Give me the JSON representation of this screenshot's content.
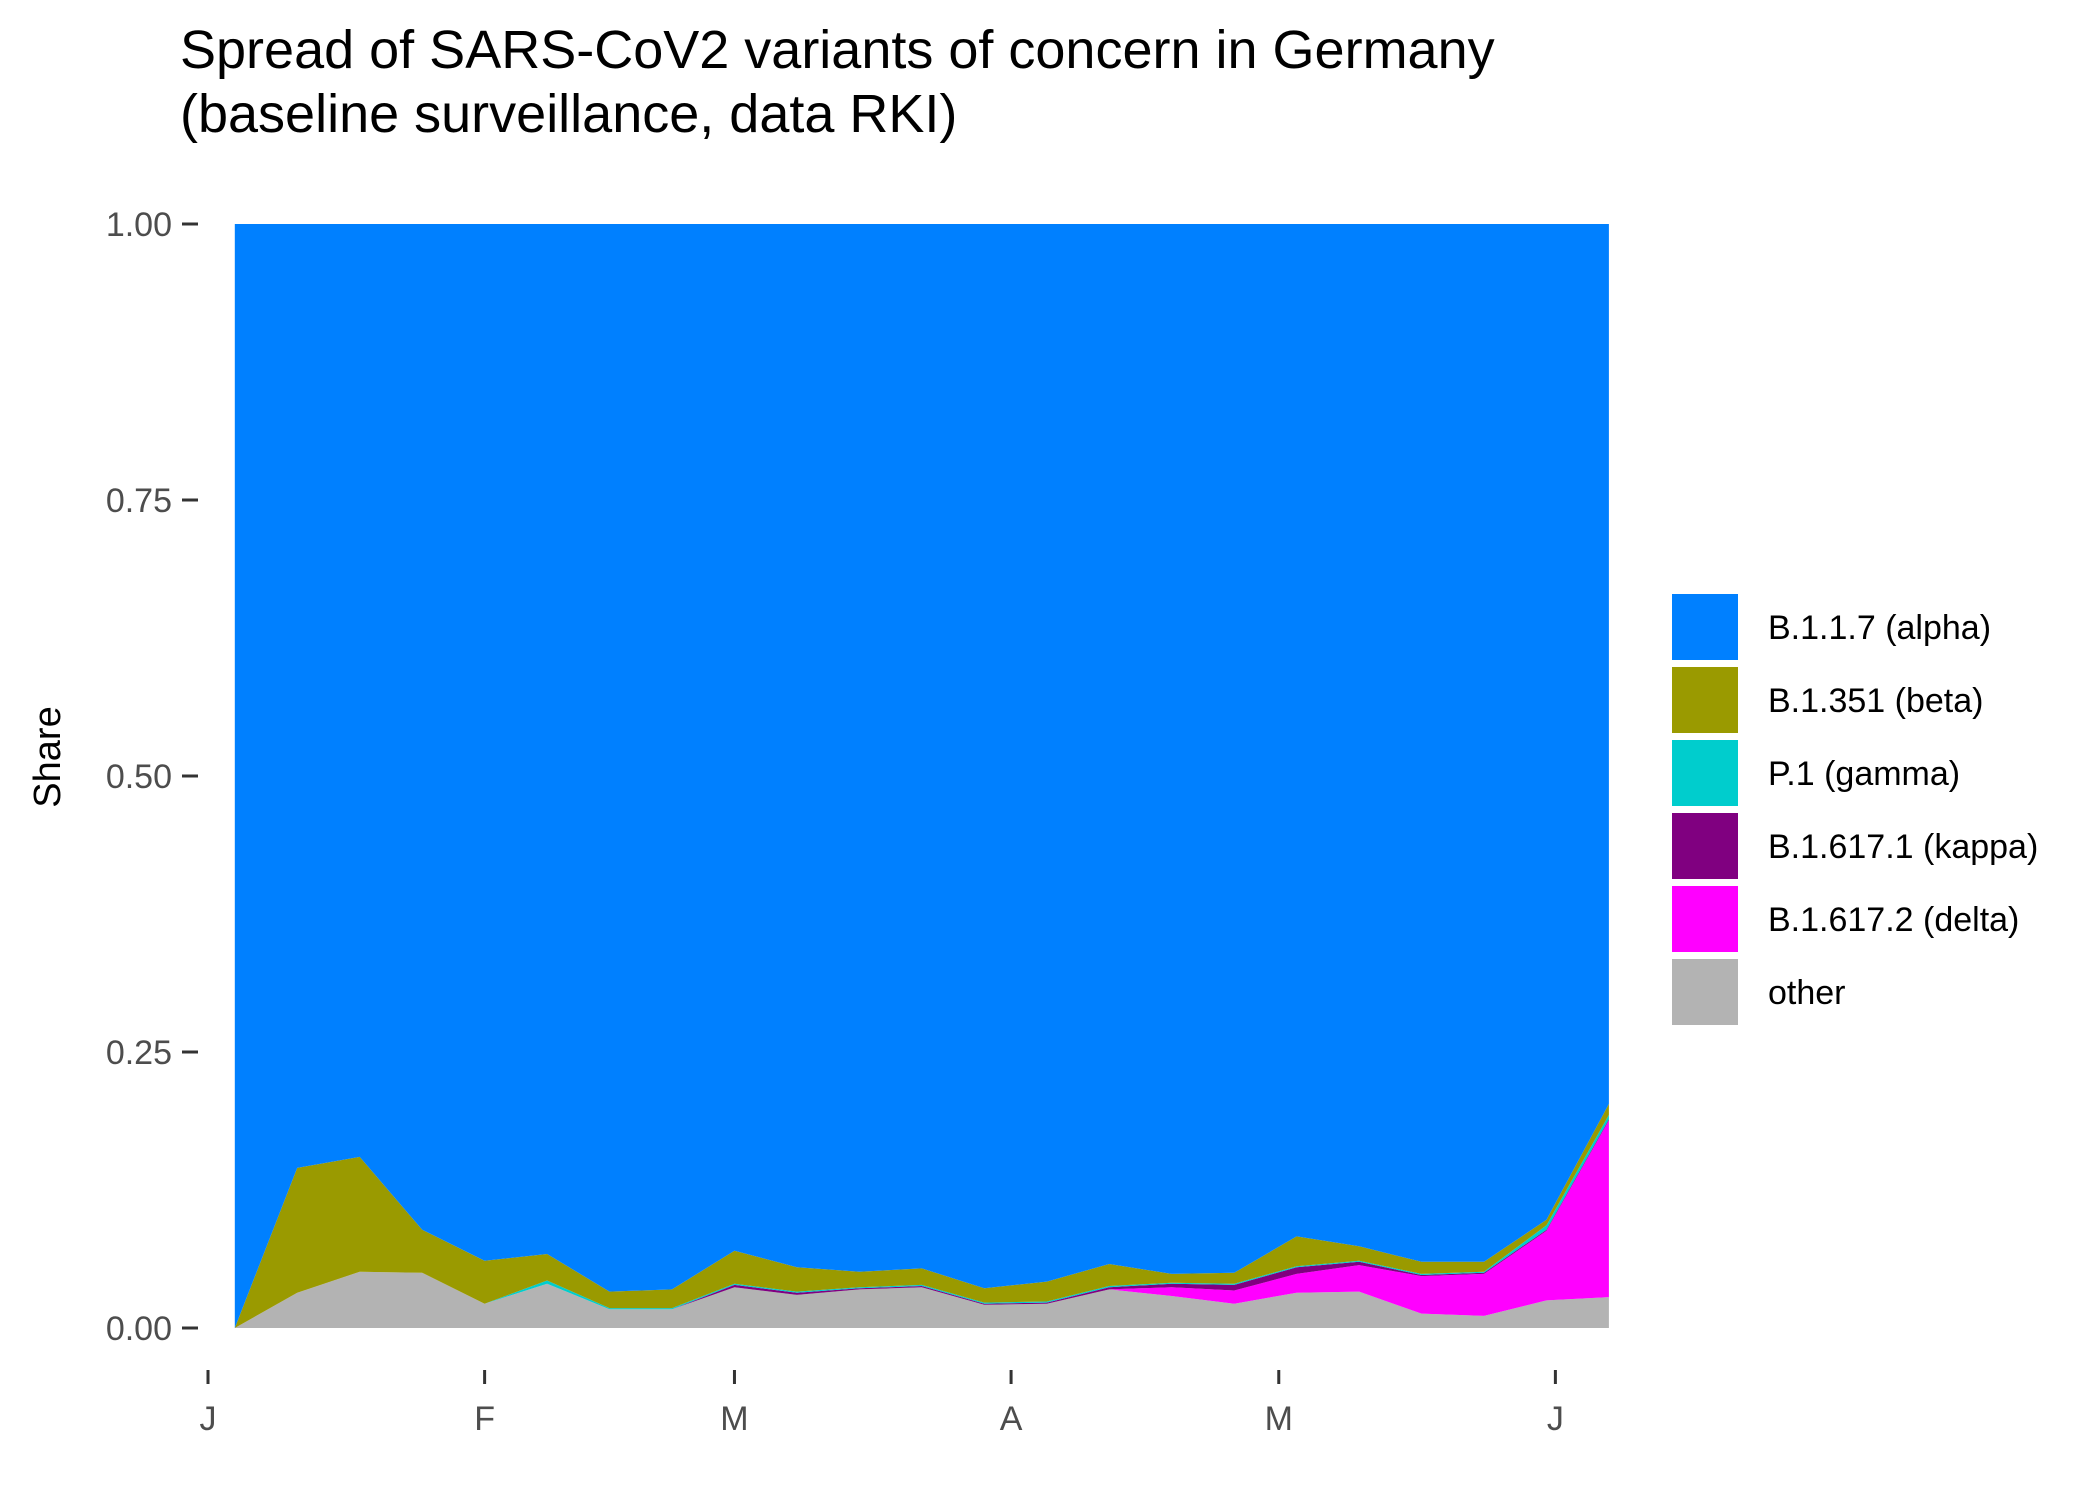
{
  "chart_data": {
    "type": "area",
    "title": "Spread of SARS-CoV2 variants of concern in Germany",
    "subtitle": "(baseline surveillance, data RKI)",
    "xlabel": "",
    "ylabel": "Share",
    "ylim": [
      0,
      1
    ],
    "yticks": [
      "0.00",
      "0.25",
      "0.50",
      "0.75",
      "1.00"
    ],
    "xlim": [
      "2021-01-01",
      "2021-06-06"
    ],
    "xticks": [
      {
        "date": "2021-01-01",
        "label": "J"
      },
      {
        "date": "2021-02-01",
        "label": "F"
      },
      {
        "date": "2021-03-01",
        "label": "M"
      },
      {
        "date": "2021-04-01",
        "label": "A"
      },
      {
        "date": "2021-05-01",
        "label": "M"
      },
      {
        "date": "2021-06-01",
        "label": "J"
      }
    ],
    "x": [
      "2021-01-04",
      "2021-01-11",
      "2021-01-18",
      "2021-01-25",
      "2021-02-01",
      "2021-02-08",
      "2021-02-15",
      "2021-02-22",
      "2021-03-01",
      "2021-03-08",
      "2021-03-15",
      "2021-03-22",
      "2021-03-29",
      "2021-04-05",
      "2021-04-12",
      "2021-04-19",
      "2021-04-26",
      "2021-05-03",
      "2021-05-10",
      "2021-05-17",
      "2021-05-24",
      "2021-05-31",
      "2021-06-07"
    ],
    "stacking_order": [
      "other",
      "B.1.617.2 (delta)",
      "B.1.617.1 (kappa)",
      "P.1 (gamma)",
      "B.1.351 (beta)",
      "B.1.1.7 (alpha)"
    ],
    "series": [
      {
        "name": "other",
        "color": "#b3b3b3",
        "values": [
          0.0,
          0.032,
          0.051,
          0.05,
          0.022,
          0.04,
          0.017,
          0.017,
          0.037,
          0.03,
          0.035,
          0.037,
          0.021,
          0.022,
          0.035,
          0.029,
          0.022,
          0.032,
          0.033,
          0.013,
          0.011,
          0.025,
          0.028
        ]
      },
      {
        "name": "B.1.617.2 (delta)",
        "color": "#ff00ff",
        "values": [
          0,
          0,
          0,
          0,
          0,
          0,
          0,
          0,
          0,
          0,
          0,
          0,
          0,
          0,
          0,
          0.008,
          0.012,
          0.017,
          0.024,
          0.034,
          0.038,
          0.063,
          0.16
        ]
      },
      {
        "name": "B.1.617.1 (kappa)",
        "color": "#800080",
        "values": [
          0,
          0,
          0,
          0,
          0,
          0,
          0,
          0,
          0.002,
          0.002,
          0.001,
          0.001,
          0.001,
          0.001,
          0.002,
          0.003,
          0.005,
          0.006,
          0.003,
          0.001,
          0.001,
          0.001,
          0.001
        ]
      },
      {
        "name": "P.1 (gamma)",
        "color": "#00cdcd",
        "values": [
          0,
          0,
          0,
          0,
          0,
          0.003,
          0.001,
          0.001,
          0.001,
          0.001,
          0.001,
          0.001,
          0.001,
          0.001,
          0.001,
          0.001,
          0.001,
          0.001,
          0.001,
          0.001,
          0.001,
          0.004,
          0.004
        ]
      },
      {
        "name": "B.1.351 (beta)",
        "color": "#9a9a00",
        "values": [
          0,
          0.113,
          0.104,
          0.039,
          0.039,
          0.024,
          0.015,
          0.017,
          0.03,
          0.022,
          0.014,
          0.015,
          0.013,
          0.018,
          0.02,
          0.008,
          0.01,
          0.027,
          0.013,
          0.011,
          0.009,
          0.005,
          0.01
        ]
      },
      {
        "name": "B.1.1.7 (alpha)",
        "color": "#0080ff",
        "values": [
          1.0,
          0.855,
          0.845,
          0.911,
          0.939,
          0.933,
          0.967,
          0.965,
          0.93,
          0.945,
          0.949,
          0.946,
          0.964,
          0.958,
          0.942,
          0.951,
          0.95,
          0.917,
          0.926,
          0.94,
          0.94,
          0.902,
          0.797
        ]
      }
    ],
    "legend": {
      "position": "right",
      "entries": [
        {
          "label": "B.1.1.7 (alpha)",
          "color": "#0080ff"
        },
        {
          "label": "B.1.351 (beta)",
          "color": "#9a9a00"
        },
        {
          "label": "P.1 (gamma)",
          "color": "#00cdcd"
        },
        {
          "label": "B.1.617.1 (kappa)",
          "color": "#800080"
        },
        {
          "label": "B.1.617.2 (delta)",
          "color": "#ff00ff"
        },
        {
          "label": "other",
          "color": "#b3b3b3"
        }
      ]
    },
    "grid": false
  }
}
